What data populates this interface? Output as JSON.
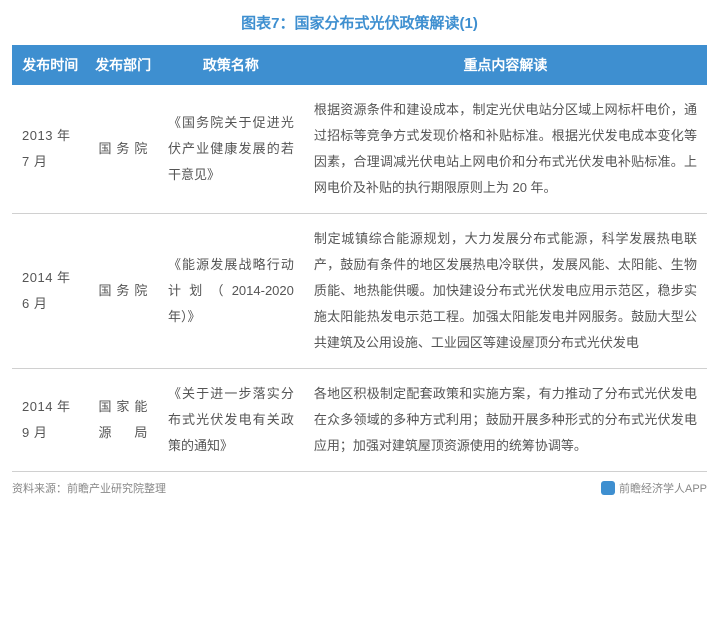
{
  "title": "图表7：国家分布式光伏政策解读(1)",
  "table": {
    "headers": [
      "发布时间",
      "发布部门",
      "政策名称",
      "重点内容解读"
    ],
    "rows": [
      {
        "date": "2013 年 7 月",
        "dept": "国务院",
        "name": "《国务院关于促进光伏产业健康发展的若干意见》",
        "content": "根据资源条件和建设成本，制定光伏电站分区域上网标杆电价，通过招标等竞争方式发现价格和补贴标准。根据光伏发电成本变化等因素，合理调减光伏电站上网电价和分布式光伏发电补贴标准。上网电价及补贴的执行期限原则上为 20 年。"
      },
      {
        "date": "2014 年 6 月",
        "dept": "国务院",
        "name": "《能源发展战略行动计划（2014-2020年）》",
        "content": "制定城镇综合能源规划，大力发展分布式能源，科学发展热电联产，鼓励有条件的地区发展热电冷联供，发展风能、太阳能、生物质能、地热能供暖。加快建设分布式光伏发电应用示范区，稳步实施太阳能热发电示范工程。加强太阳能发电并网服务。鼓励大型公共建筑及公用设施、工业园区等建设屋顶分布式光伏发电"
      },
      {
        "date": "2014 年 9 月",
        "dept": "国家能源局",
        "name": "《关于进一步落实分布式光伏发电有关政策的通知》",
        "content": "各地区积极制定配套政策和实施方案，有力推动了分布式光伏发电在众多领域的多种方式利用；鼓励开展多种形式的分布式光伏发电应用；加强对建筑屋顶资源使用的统筹协调等。"
      }
    ]
  },
  "footer": {
    "source_label": "资料来源：前瞻产业研究院整理",
    "app_label": "前瞻经济学人APP"
  },
  "styles": {
    "header_bg": "#3e8fd0",
    "header_text": "#ffffff",
    "title_color": "#3e8fd0",
    "cell_text": "#555555",
    "border_color": "#d0d0d0",
    "footer_text": "#888888"
  }
}
